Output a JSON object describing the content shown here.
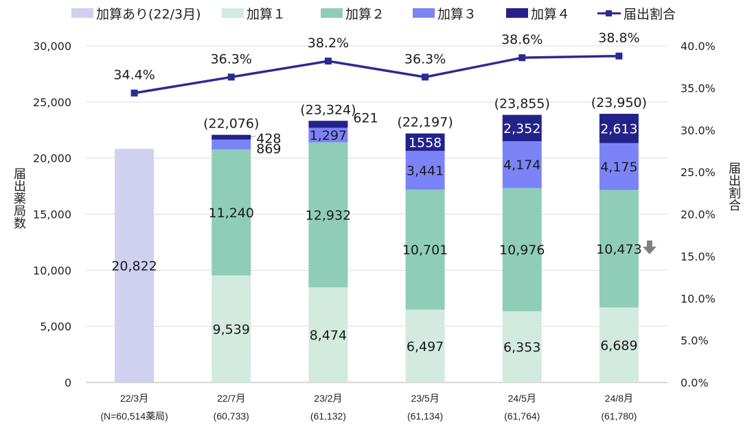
{
  "chart_data": {
    "type": "bar",
    "stacked": true,
    "title": "",
    "categories": [
      "22/3月",
      "22/7月",
      "23/2月",
      "23/5月",
      "24/5月",
      "24/8月"
    ],
    "category_sublabels": [
      "(N=60,514薬局)",
      "(60,733)",
      "(61,132)",
      "(61,134)",
      "(61,764)",
      "(61,780)"
    ],
    "series": [
      {
        "name": "加算あり(22/3月)",
        "color": "#d0d0f0",
        "values": [
          20822,
          null,
          null,
          null,
          null,
          null
        ],
        "labels": [
          "20,822",
          null,
          null,
          null,
          null,
          null
        ]
      },
      {
        "name": "加算１",
        "color": "#d3eadf",
        "values": [
          null,
          9539,
          8474,
          6497,
          6353,
          6689
        ],
        "labels": [
          null,
          "9,539",
          "8,474",
          "6,497",
          "6,353",
          "6,689"
        ]
      },
      {
        "name": "加算２",
        "color": "#8fcdb9",
        "values": [
          null,
          11240,
          12932,
          10701,
          10976,
          10473
        ],
        "labels": [
          null,
          "11,240",
          "12,932",
          "10,701",
          "10,976",
          "10,473"
        ]
      },
      {
        "name": "加算３",
        "color": "#7b84f7",
        "values": [
          null,
          869,
          1297,
          3441,
          4174,
          4175
        ],
        "labels": [
          null,
          "869",
          "1,297",
          "3,441",
          "4,174",
          "4,175"
        ]
      },
      {
        "name": "加算４",
        "color": "#22228a",
        "values": [
          null,
          428,
          621,
          1558,
          2352,
          2613
        ],
        "labels": [
          null,
          "428",
          "621",
          "1558",
          "2,352",
          "2,613"
        ]
      }
    ],
    "totals": [
      null,
      22076,
      23324,
      22197,
      23855,
      23950
    ],
    "total_labels": [
      null,
      "(22,076)",
      "(23,324)",
      "(22,197)",
      "(23,855)",
      "(23,950)"
    ],
    "line_series": {
      "name": "届出割合",
      "color": "#2b2b8f",
      "axis": "right",
      "values": [
        34.4,
        36.3,
        38.2,
        36.3,
        38.6,
        38.8
      ],
      "labels": [
        "34.4%",
        "36.3%",
        "38.2%",
        "36.3%",
        "38.6%",
        "38.8%"
      ]
    },
    "ylabel": "届出薬局数",
    "y2label": "届出割合",
    "ylim": [
      0,
      30000
    ],
    "y2lim": [
      0,
      40
    ],
    "yticks": [
      "0",
      "5,000",
      "10,000",
      "15,000",
      "20,000",
      "25,000",
      "30,000"
    ],
    "y2ticks": [
      "0.0%",
      "5.0%",
      "10.0%",
      "15.0%",
      "20.0%",
      "25.0%",
      "30.0%",
      "35.0%",
      "40.0%"
    ],
    "grid": true,
    "legend_position": "top",
    "annotations": [
      {
        "type": "down-arrow",
        "category": "24/8月",
        "series": "加算２",
        "color": "#808080"
      }
    ]
  }
}
